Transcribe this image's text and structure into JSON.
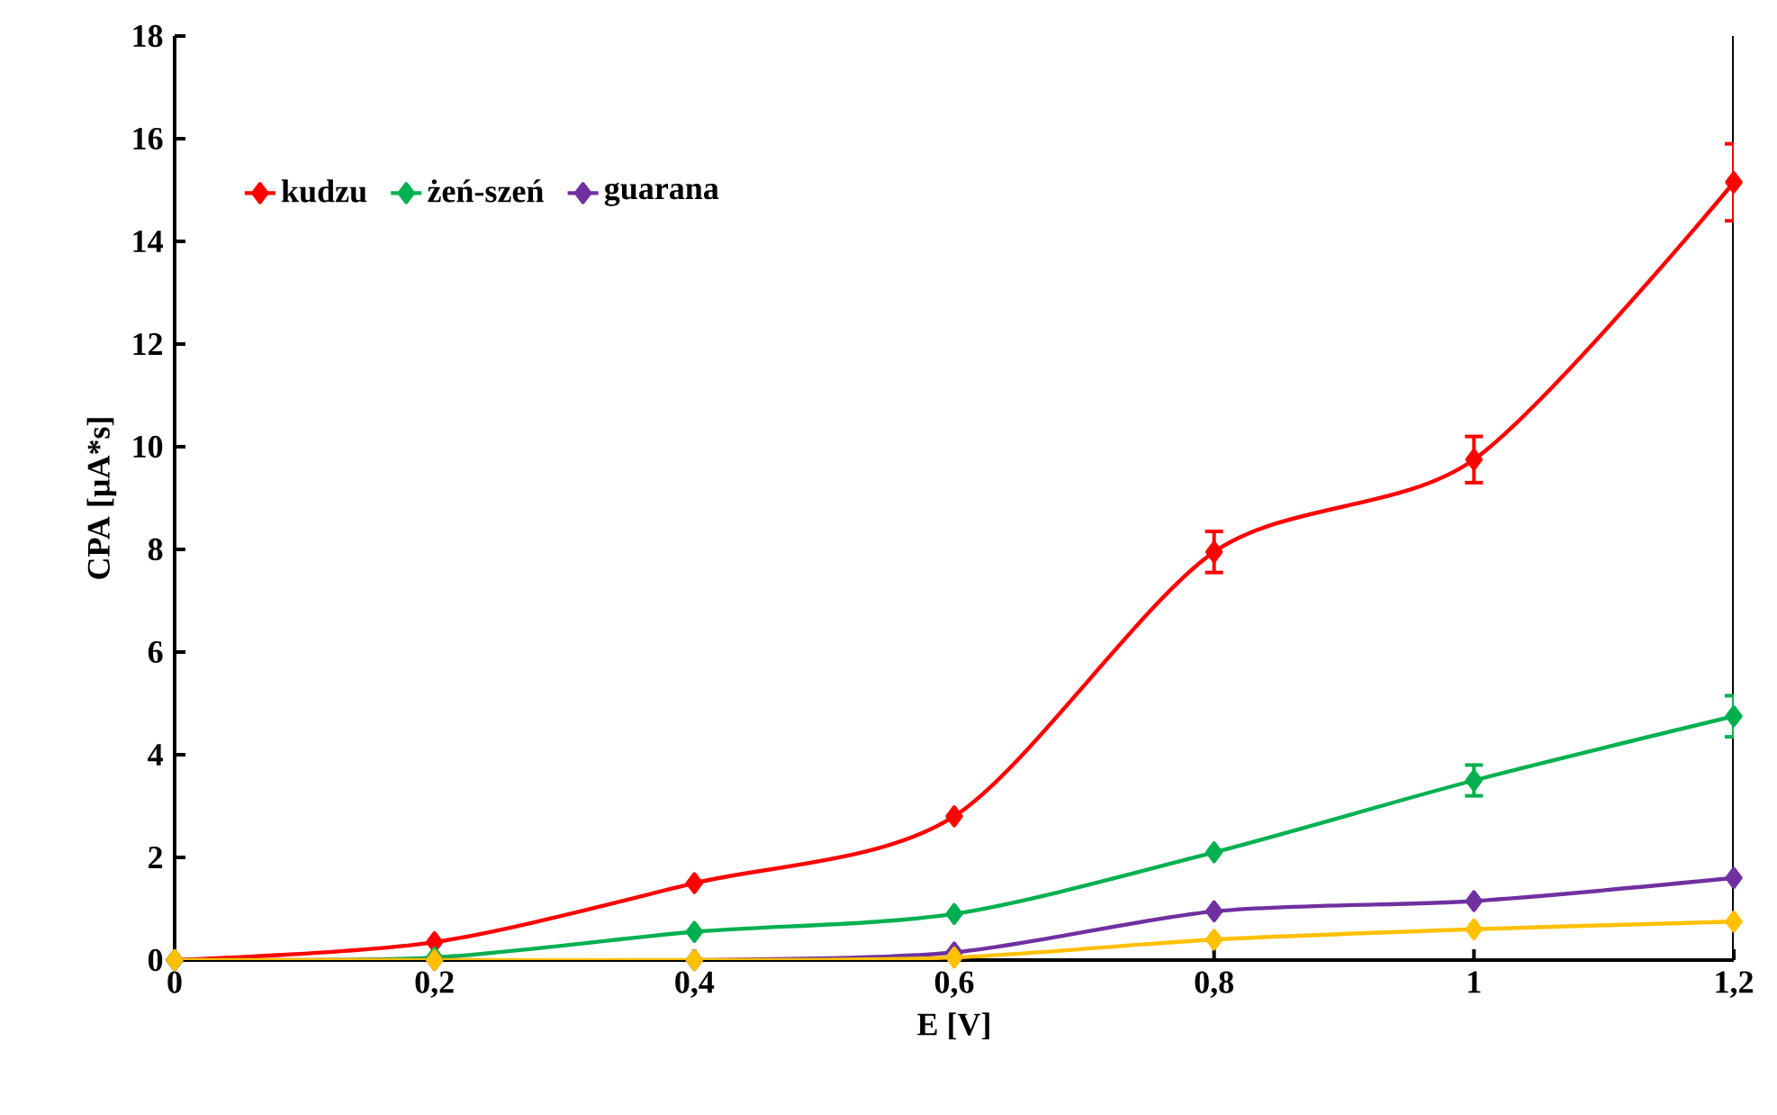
{
  "chart_data": {
    "type": "line",
    "xlabel": "E [V]",
    "ylabel": "CPA [µA*s]",
    "x": [
      0,
      0.2,
      0.4,
      0.6,
      0.8,
      1,
      1.2
    ],
    "xlim": [
      0,
      1.2
    ],
    "xticks": [
      0,
      {
        "value": 0.2,
        "label": "0,2"
      },
      {
        "value": 0.4,
        "label": "0,4"
      },
      {
        "value": 0.6,
        "label": "0,6"
      },
      {
        "value": 0.8,
        "label": "0,8"
      },
      1,
      {
        "value": 1.2,
        "label": "1,2"
      }
    ],
    "ylim": [
      0,
      18
    ],
    "yticks": [
      0,
      2,
      4,
      6,
      8,
      10,
      12,
      14,
      16,
      18
    ],
    "series": [
      {
        "name": "kudzu",
        "color": "#ff0000",
        "values": [
          0,
          0.35,
          1.5,
          2.8,
          7.95,
          9.75,
          15.15
        ],
        "errors": [
          null,
          null,
          null,
          null,
          0.4,
          0.45,
          0.75
        ]
      },
      {
        "name": "żeń-szeń",
        "color": "#00b050",
        "values": [
          0,
          0.05,
          0.55,
          0.9,
          2.1,
          3.5,
          4.75
        ],
        "errors": [
          null,
          null,
          null,
          null,
          null,
          0.3,
          0.4
        ]
      },
      {
        "name": "guarana",
        "color": "#7030a0",
        "values": [
          0,
          0,
          0,
          0.15,
          0.95,
          1.15,
          1.6
        ]
      },
      {
        "color": "#ffc000",
        "values": [
          0,
          0,
          0,
          0.05,
          0.4,
          0.6,
          0.75
        ]
      }
    ],
    "legend": "top left",
    "marker": "diamond",
    "line_style": "solid",
    "grid": false
  }
}
